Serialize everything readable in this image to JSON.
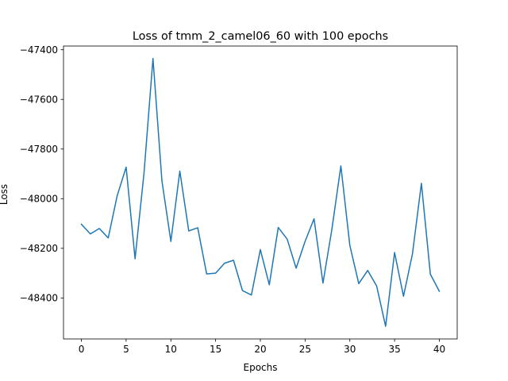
{
  "chart_data": {
    "type": "line",
    "title": "Loss of tmm_2_camel06_60 with 100 epochs",
    "xlabel": "Epochs",
    "ylabel": "Loss",
    "xlim": [
      -2,
      42
    ],
    "ylim": [
      -48565,
      -47385
    ],
    "xticks": [
      0,
      5,
      10,
      15,
      20,
      25,
      30,
      35,
      40
    ],
    "yticks": [
      -48400,
      -48200,
      -48000,
      -47800,
      -47600,
      -47400
    ],
    "grid": false,
    "legend": "none",
    "series": [
      {
        "color": "#1f77b4",
        "x": [
          0,
          1,
          2,
          3,
          4,
          5,
          6,
          7,
          8,
          9,
          10,
          11,
          12,
          13,
          14,
          15,
          16,
          17,
          18,
          19,
          20,
          21,
          22,
          23,
          24,
          25,
          26,
          27,
          28,
          29,
          30,
          31,
          32,
          33,
          34,
          35,
          36,
          37,
          38,
          39,
          40
        ],
        "y": [
          -48103,
          -48142,
          -48120,
          -48158,
          -47988,
          -47873,
          -48242,
          -47896,
          -47435,
          -47928,
          -48172,
          -47889,
          -48130,
          -48117,
          -48303,
          -48300,
          -48260,
          -48248,
          -48370,
          -48388,
          -48205,
          -48347,
          -48116,
          -48163,
          -48280,
          -48172,
          -48081,
          -48340,
          -48122,
          -47868,
          -48188,
          -48342,
          -48289,
          -48352,
          -48514,
          -48217,
          -48393,
          -48222,
          -47938,
          -48304,
          -48373
        ]
      }
    ]
  }
}
